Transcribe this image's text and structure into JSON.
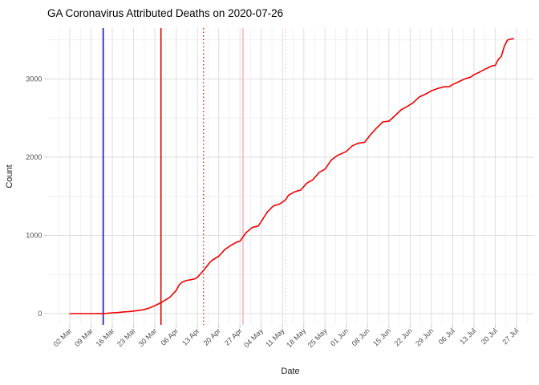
{
  "chart_data": {
    "type": "line",
    "title": "GA Coronavirus Attributed Deaths on 2020-07-26",
    "xlabel": "Date",
    "ylabel": "Count",
    "x_domain": [
      "2020-03-02",
      "2020-07-27"
    ],
    "ylim": [
      0,
      3650
    ],
    "grid": "on",
    "legend": "none",
    "x_ticks": [
      "02 Mar",
      "09 Mar",
      "16 Mar",
      "23 Mar",
      "30 Mar",
      "06 Apr",
      "13 Apr",
      "20 Apr",
      "27 Apr",
      "04 May",
      "11 May",
      "18 May",
      "25 May",
      "01 Jun",
      "08 Jun",
      "15 Jun",
      "22 Jun",
      "29 Jun",
      "06 Jul",
      "13 Jul",
      "20 Jul",
      "27 Jul"
    ],
    "y_ticks": [
      0,
      1000,
      2000,
      3000
    ],
    "y_minor_ticks": [
      500,
      1500,
      2500,
      3500
    ],
    "colors": {
      "series": "#ee0000",
      "grid_major": "#dedede",
      "grid_minor": "#ececec",
      "axis_text": "#4d4d4d",
      "tick_mark": "#c8c8c8"
    },
    "vlines": [
      {
        "name": "vline-blue-solid",
        "date": "2020-03-13",
        "color": "#1515c2",
        "style": "solid"
      },
      {
        "name": "vline-red-solid",
        "date": "2020-04-01",
        "color": "#dd0000",
        "style": "solid"
      },
      {
        "name": "vline-red-dotted",
        "date": "2020-04-15",
        "color": "#dd2222",
        "style": "dotted"
      },
      {
        "name": "vline-pink-solid",
        "date": "2020-04-28",
        "color": "#f2b5c3",
        "style": "solid"
      },
      {
        "name": "vline-pink-dotted",
        "date": "2020-05-12",
        "color": "#f6c6d0",
        "style": "dotted"
      }
    ],
    "series": [
      {
        "name": "cumulative-deaths",
        "color": "#ee0000",
        "points": [
          [
            "2020-03-02",
            0
          ],
          [
            "2020-03-07",
            0
          ],
          [
            "2020-03-10",
            0
          ],
          [
            "2020-03-12",
            1
          ],
          [
            "2020-03-14",
            3
          ],
          [
            "2020-03-16",
            10
          ],
          [
            "2020-03-18",
            14
          ],
          [
            "2020-03-20",
            23
          ],
          [
            "2020-03-22",
            28
          ],
          [
            "2020-03-24",
            38
          ],
          [
            "2020-03-26",
            48
          ],
          [
            "2020-03-28",
            69
          ],
          [
            "2020-03-30",
            102
          ],
          [
            "2020-04-01",
            139
          ],
          [
            "2020-04-02",
            163
          ],
          [
            "2020-04-04",
            211
          ],
          [
            "2020-04-05",
            254
          ],
          [
            "2020-04-06",
            294
          ],
          [
            "2020-04-07",
            368
          ],
          [
            "2020-04-08",
            402
          ],
          [
            "2020-04-09",
            420
          ],
          [
            "2020-04-10",
            428
          ],
          [
            "2020-04-12",
            442
          ],
          [
            "2020-04-13",
            464
          ],
          [
            "2020-04-15",
            552
          ],
          [
            "2020-04-17",
            650
          ],
          [
            "2020-04-18",
            687
          ],
          [
            "2020-04-20",
            733
          ],
          [
            "2020-04-22",
            818
          ],
          [
            "2020-04-24",
            872
          ],
          [
            "2020-04-26",
            916
          ],
          [
            "2020-04-27",
            926
          ],
          [
            "2020-04-29",
            1035
          ],
          [
            "2020-05-01",
            1101
          ],
          [
            "2020-05-03",
            1120
          ],
          [
            "2020-05-04",
            1177
          ],
          [
            "2020-05-06",
            1300
          ],
          [
            "2020-05-08",
            1377
          ],
          [
            "2020-05-10",
            1400
          ],
          [
            "2020-05-12",
            1454
          ],
          [
            "2020-05-13",
            1515
          ],
          [
            "2020-05-15",
            1557
          ],
          [
            "2020-05-17",
            1580
          ],
          [
            "2020-05-19",
            1669
          ],
          [
            "2020-05-21",
            1712
          ],
          [
            "2020-05-23",
            1804
          ],
          [
            "2020-05-25",
            1848
          ],
          [
            "2020-05-27",
            1962
          ],
          [
            "2020-05-29",
            2020
          ],
          [
            "2020-06-01",
            2074
          ],
          [
            "2020-06-03",
            2147
          ],
          [
            "2020-06-05",
            2180
          ],
          [
            "2020-06-07",
            2190
          ],
          [
            "2020-06-09",
            2289
          ],
          [
            "2020-06-11",
            2375
          ],
          [
            "2020-06-13",
            2451
          ],
          [
            "2020-06-15",
            2461
          ],
          [
            "2020-06-17",
            2529
          ],
          [
            "2020-06-19",
            2605
          ],
          [
            "2020-06-21",
            2648
          ],
          [
            "2020-06-23",
            2698
          ],
          [
            "2020-06-25",
            2770
          ],
          [
            "2020-06-27",
            2805
          ],
          [
            "2020-06-29",
            2849
          ],
          [
            "2020-07-01",
            2878
          ],
          [
            "2020-07-03",
            2899
          ],
          [
            "2020-07-05",
            2904
          ],
          [
            "2020-07-06",
            2930
          ],
          [
            "2020-07-08",
            2965
          ],
          [
            "2020-07-10",
            3002
          ],
          [
            "2020-07-12",
            3026
          ],
          [
            "2020-07-13",
            3054
          ],
          [
            "2020-07-15",
            3091
          ],
          [
            "2020-07-17",
            3132
          ],
          [
            "2020-07-19",
            3169
          ],
          [
            "2020-07-20",
            3173
          ],
          [
            "2020-07-21",
            3250
          ],
          [
            "2020-07-22",
            3288
          ],
          [
            "2020-07-23",
            3420
          ],
          [
            "2020-07-24",
            3497
          ],
          [
            "2020-07-25",
            3510
          ],
          [
            "2020-07-26",
            3515
          ]
        ]
      }
    ]
  }
}
